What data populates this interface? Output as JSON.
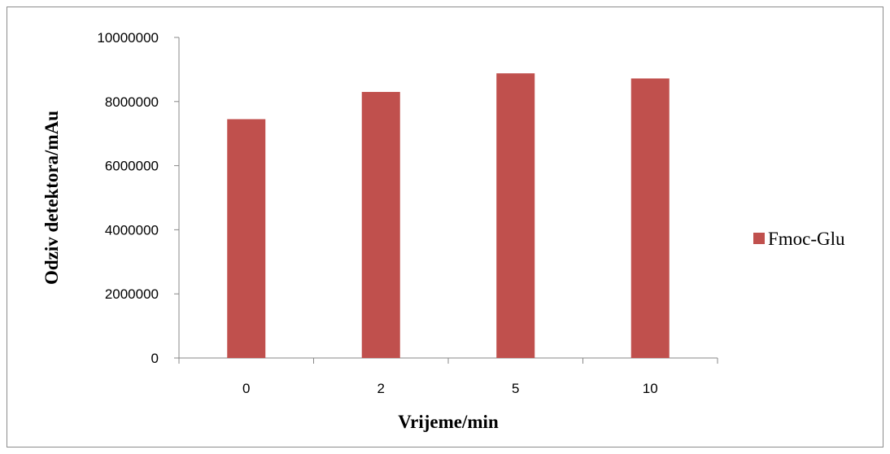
{
  "chart_data": {
    "type": "bar",
    "categories": [
      "0",
      "2",
      "5",
      "10"
    ],
    "series": [
      {
        "name": "Fmoc-Glu",
        "values": [
          7450000,
          8300000,
          8880000,
          8720000
        ]
      }
    ],
    "xlabel": "Vrijeme/min",
    "ylabel": "Odziv detektora/mAu",
    "ylim": [
      0,
      10000000
    ],
    "yticks": [
      "0",
      "2000000",
      "4000000",
      "6000000",
      "8000000",
      "10000000"
    ],
    "grid": false,
    "legend_position": "right",
    "colors": {
      "bar": "#c0504d",
      "axis": "#888888"
    }
  }
}
